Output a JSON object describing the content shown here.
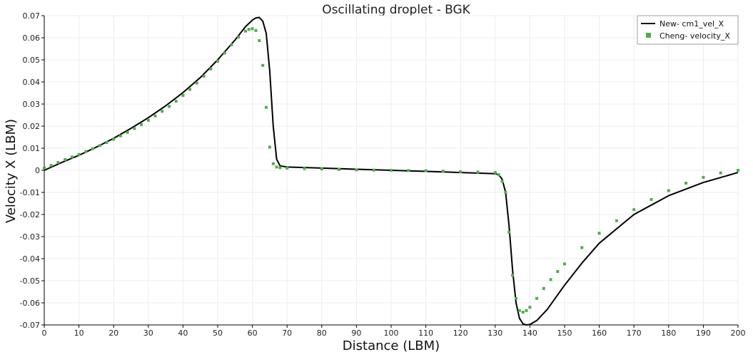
{
  "chart_data": {
    "type": "line",
    "title": "Oscillating droplet - BGK",
    "xlabel": "Distance (LBM)",
    "ylabel": "Velocity X (LBM)",
    "xlim": [
      0,
      200
    ],
    "ylim": [
      -0.07,
      0.07
    ],
    "x_ticks": [
      0,
      10,
      20,
      30,
      40,
      50,
      60,
      70,
      80,
      90,
      100,
      110,
      120,
      130,
      140,
      150,
      160,
      170,
      180,
      190,
      200
    ],
    "y_ticks": [
      0.07,
      0.06,
      0.05,
      0.04,
      0.03,
      0.02,
      0.01,
      0,
      -0.01,
      -0.02,
      -0.03,
      -0.04,
      -0.05,
      -0.06,
      -0.07
    ],
    "y_tick_labels": [
      "0.07",
      "0.06",
      "0.05",
      "0.04",
      "0.03",
      "0.02",
      "0.01",
      "0",
      "-0.01",
      "-0.02",
      "-0.03",
      "-0.04",
      "-0.05",
      "-0.06",
      "-0.07"
    ],
    "grid": true,
    "legend_position": "top-right",
    "series": [
      {
        "name": "New- cm1_vel_X",
        "style": "line",
        "color": "#000000",
        "x": [
          0,
          5,
          10,
          15,
          20,
          25,
          30,
          35,
          40,
          45,
          50,
          55,
          58,
          60,
          61,
          62,
          63,
          64,
          65,
          66,
          67,
          68,
          70,
          80,
          90,
          100,
          110,
          120,
          130,
          131,
          132,
          133,
          134,
          135,
          136,
          137,
          138,
          139,
          140,
          142,
          145,
          150,
          155,
          160,
          170,
          180,
          190,
          200
        ],
        "y": [
          0,
          0.0035,
          0.0068,
          0.0105,
          0.0145,
          0.019,
          0.0238,
          0.0292,
          0.0352,
          0.042,
          0.05,
          0.059,
          0.065,
          0.068,
          0.069,
          0.0692,
          0.0675,
          0.062,
          0.045,
          0.02,
          0.005,
          0.002,
          0.0015,
          0.001,
          0.0005,
          0.0,
          -0.0005,
          -0.001,
          -0.0015,
          -0.002,
          -0.004,
          -0.01,
          -0.025,
          -0.045,
          -0.06,
          -0.067,
          -0.0695,
          -0.07,
          -0.0698,
          -0.068,
          -0.063,
          -0.052,
          -0.042,
          -0.033,
          -0.02,
          -0.0115,
          -0.0055,
          -0.001
        ]
      },
      {
        "name": "Cheng- velocity_X",
        "style": "markers",
        "color": "#4daf4a",
        "x": [
          0,
          2,
          4,
          6,
          8,
          10,
          12,
          14,
          16,
          18,
          20,
          22,
          24,
          26,
          28,
          30,
          32,
          34,
          36,
          38,
          40,
          42,
          44,
          46,
          48,
          50,
          52,
          54,
          56,
          58,
          59,
          60,
          61,
          62,
          63,
          64,
          65,
          66,
          67,
          68,
          70,
          75,
          80,
          85,
          90,
          95,
          100,
          105,
          110,
          115,
          120,
          125,
          130,
          131,
          132,
          133,
          134,
          135,
          136,
          137,
          138,
          139,
          140,
          142,
          144,
          146,
          148,
          150,
          155,
          160,
          165,
          170,
          175,
          180,
          185,
          190,
          195,
          200
        ],
        "y": [
          0.001,
          0.0022,
          0.0035,
          0.0048,
          0.006,
          0.0072,
          0.0085,
          0.0098,
          0.0112,
          0.0126,
          0.0141,
          0.0156,
          0.0172,
          0.0189,
          0.0207,
          0.0226,
          0.0246,
          0.0267,
          0.0289,
          0.0313,
          0.0339,
          0.0366,
          0.0395,
          0.0426,
          0.0459,
          0.0494,
          0.0531,
          0.0568,
          0.0603,
          0.063,
          0.0638,
          0.0641,
          0.0633,
          0.0587,
          0.0475,
          0.0285,
          0.0105,
          0.003,
          0.0015,
          0.0012,
          0.001,
          0.0008,
          0.0006,
          0.0004,
          0.0002,
          0.0001,
          0.0,
          -0.0001,
          -0.0002,
          -0.0004,
          -0.0006,
          -0.0008,
          -0.001,
          -0.002,
          -0.005,
          -0.01,
          -0.028,
          -0.0475,
          -0.058,
          -0.0635,
          -0.0642,
          -0.0635,
          -0.062,
          -0.058,
          -0.0535,
          -0.0495,
          -0.0458,
          -0.0424,
          -0.035,
          -0.0285,
          -0.0228,
          -0.0178,
          -0.0132,
          -0.0092,
          -0.0058,
          -0.0032,
          -0.0012,
          0.0
        ]
      }
    ]
  }
}
